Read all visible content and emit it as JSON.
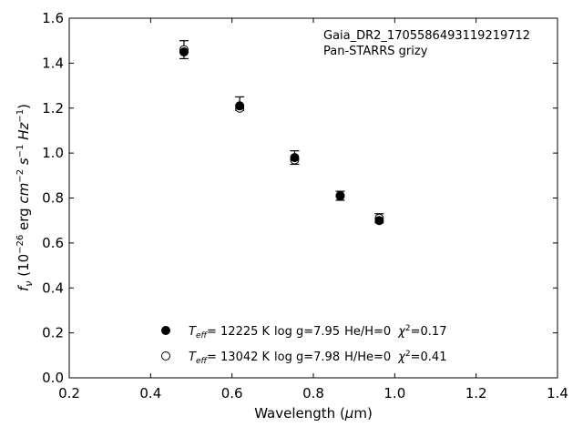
{
  "chart_data": {
    "type": "scatter",
    "title": "",
    "xlabel": "Wavelength (μm)",
    "ylabel": "f_ν (10^−26 erg cm^−2 s^−1 Hz^−1)",
    "xlim": [
      0.2,
      1.4
    ],
    "ylim": [
      0.0,
      1.6
    ],
    "xticks": [
      "0.2",
      "0.4",
      "0.6",
      "0.8",
      "1.0",
      "1.2",
      "1.4"
    ],
    "yticks": [
      "0.0",
      "0.2",
      "0.4",
      "0.6",
      "0.8",
      "1.0",
      "1.2",
      "1.4",
      "1.6"
    ],
    "annotation_lines": [
      "Gaia_DR2_1705586493119219712",
      "Pan-STARRS grizy"
    ],
    "observed": {
      "x": [
        0.482,
        0.619,
        0.754,
        0.866,
        0.962
      ],
      "y": [
        1.46,
        1.22,
        0.98,
        0.81,
        0.71
      ],
      "yerr": [
        0.04,
        0.03,
        0.03,
        0.02,
        0.02
      ]
    },
    "series": [
      {
        "marker": "filled-circle",
        "legend": {
          "teff_value": "= 12225 K",
          "logg": "log g=7.95",
          "comp": "He/H=0",
          "chi2_value": "=0.17"
        },
        "x": [
          0.482,
          0.619,
          0.754,
          0.866,
          0.962
        ],
        "y": [
          1.45,
          1.21,
          0.98,
          0.81,
          0.7
        ]
      },
      {
        "marker": "open-circle",
        "legend": {
          "teff_value": "= 13042 K",
          "logg": "log g=7.98",
          "comp": "H/He=0",
          "chi2_value": "=0.41"
        },
        "x": [
          0.482,
          0.619,
          0.754,
          0.866,
          0.962
        ],
        "y": [
          1.46,
          1.2,
          0.97,
          0.81,
          0.71
        ]
      }
    ]
  }
}
